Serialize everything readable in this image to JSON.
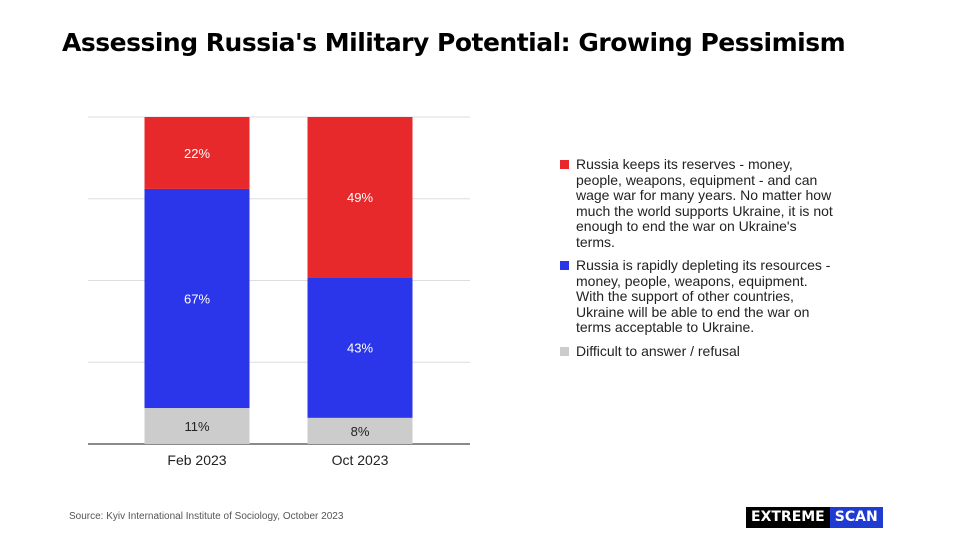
{
  "title": "Assessing Russia's Military Potential: Growing Pessimism",
  "source": "Source: Kyiv International Institute of Sociology, October 2023",
  "logo": {
    "part1": "EXTREME",
    "part2": "SCAN"
  },
  "colors": {
    "red": "#e8292c",
    "blue": "#2b35ea",
    "gray": "#cccccc"
  },
  "chart_data": {
    "type": "bar",
    "stacked": true,
    "categories": [
      "Feb 2023",
      "Oct 2023"
    ],
    "series": [
      {
        "name": "Difficult to answer / refusal",
        "values": [
          11,
          8
        ],
        "labels": [
          "11%",
          "8%"
        ],
        "color": "#cccccc"
      },
      {
        "name": "Russia is rapidly depleting its resources - money, people, weapons, equipment. With the support of other countries, Ukraine will be able to end the war on terms acceptable to Ukraine.",
        "values": [
          67,
          43
        ],
        "labels": [
          "67%",
          "43%"
        ],
        "color": "#2b35ea"
      },
      {
        "name": "Russia keeps its reserves - money, people, weapons, equipment - and can wage war for many years. No matter how much the world supports Ukraine, it is not enough to end the war on Ukraine's terms.",
        "values": [
          22,
          49
        ],
        "labels": [
          "22%",
          "49%"
        ],
        "color": "#e8292c"
      }
    ],
    "ylim": [
      0,
      100
    ],
    "grid": true,
    "legend_position": "right"
  }
}
